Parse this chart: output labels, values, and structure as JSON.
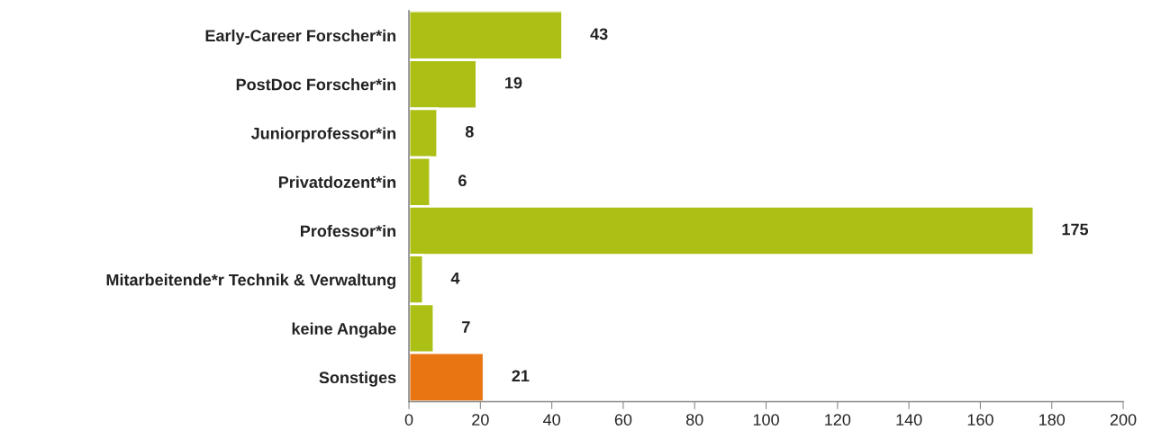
{
  "chart_data": {
    "type": "bar",
    "orientation": "horizontal",
    "categories": [
      "Early-Career Forscher*in",
      "PostDoc Forscher*in",
      "Juniorprofessor*in",
      "Privatdozent*in",
      "Professor*in",
      "Mitarbeitende*r Technik & Verwaltung",
      "keine Angabe",
      "Sonstiges"
    ],
    "values": [
      43,
      19,
      8,
      6,
      175,
      4,
      7,
      21
    ],
    "colors": [
      "#acbf14",
      "#acbf14",
      "#acbf14",
      "#acbf14",
      "#acbf14",
      "#acbf14",
      "#acbf14",
      "#e87512"
    ],
    "xlim": [
      0,
      200
    ],
    "xticks": [
      0,
      20,
      40,
      60,
      80,
      100,
      120,
      140,
      160,
      180,
      200
    ],
    "data_labels": true,
    "grid": false,
    "legend": false
  }
}
